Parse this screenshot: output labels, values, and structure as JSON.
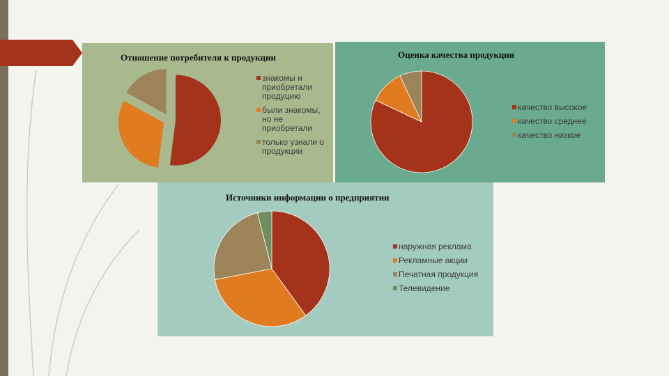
{
  "chart_data": [
    {
      "type": "pie",
      "title": "Отношение потребителя к продукции",
      "categories": [
        "знакомы и приобретали продуцию",
        "были знакомы, но не приобретали",
        "только узнали о продукции"
      ],
      "values": [
        52,
        31,
        17
      ],
      "colors": [
        "#a5321a",
        "#e07b20",
        "#9c8458"
      ]
    },
    {
      "type": "pie",
      "title": "Оценка качества продукции",
      "categories": [
        "качество высокое",
        "качество среднее",
        "качество низкое"
      ],
      "values": [
        82,
        11,
        7
      ],
      "colors": [
        "#a5321a",
        "#e07b20",
        "#9c8458"
      ]
    },
    {
      "type": "pie",
      "title": "Источники информации о предприятии",
      "categories": [
        "наружная реклама",
        "Рекламные акции",
        "Печатная продукция",
        "Телевидение"
      ],
      "values": [
        40,
        32,
        24,
        4
      ],
      "colors": [
        "#a5321a",
        "#e07b20",
        "#9c8458",
        "#6f8e5e"
      ]
    }
  ]
}
